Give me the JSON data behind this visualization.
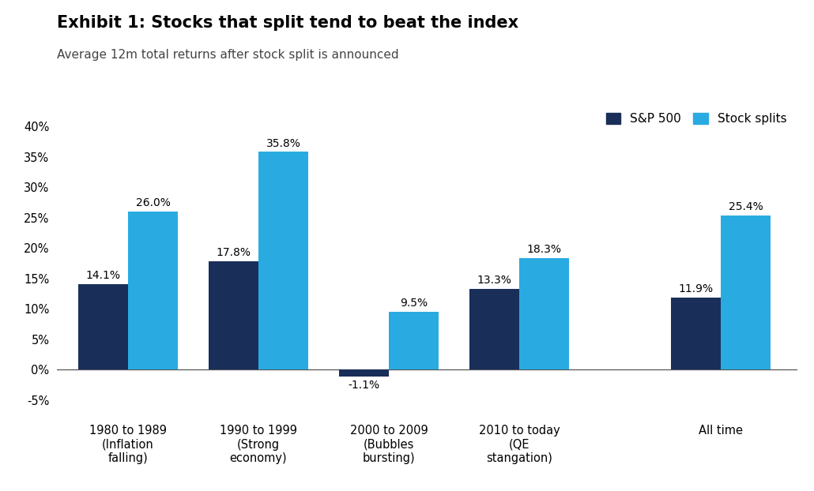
{
  "title": "Exhibit 1: Stocks that split tend to beat the index",
  "subtitle": "Average 12m total returns after stock split is announced",
  "categories": [
    "1980 to 1989\n(Inflation\nfalling)",
    "1990 to 1999\n(Strong\neconomy)",
    "2000 to 2009\n(Bubbles\nbursting)",
    "2010 to today\n(QE\nstangation)",
    "All time"
  ],
  "sp500_values": [
    14.1,
    17.8,
    -1.1,
    13.3,
    11.9
  ],
  "splits_values": [
    26.0,
    35.8,
    9.5,
    18.3,
    25.4
  ],
  "sp500_color": "#1a2e5a",
  "splits_color": "#29abe2",
  "ylim": [
    -7,
    43
  ],
  "yticks": [
    -5,
    0,
    5,
    10,
    15,
    20,
    25,
    30,
    35,
    40
  ],
  "legend_labels": [
    "S&P 500",
    "Stock splits"
  ],
  "bar_width": 0.42,
  "title_fontsize": 15,
  "subtitle_fontsize": 11,
  "tick_fontsize": 10.5,
  "label_fontsize": 10,
  "legend_fontsize": 11,
  "x_positions": [
    0,
    1.1,
    2.2,
    3.3,
    5.0
  ]
}
